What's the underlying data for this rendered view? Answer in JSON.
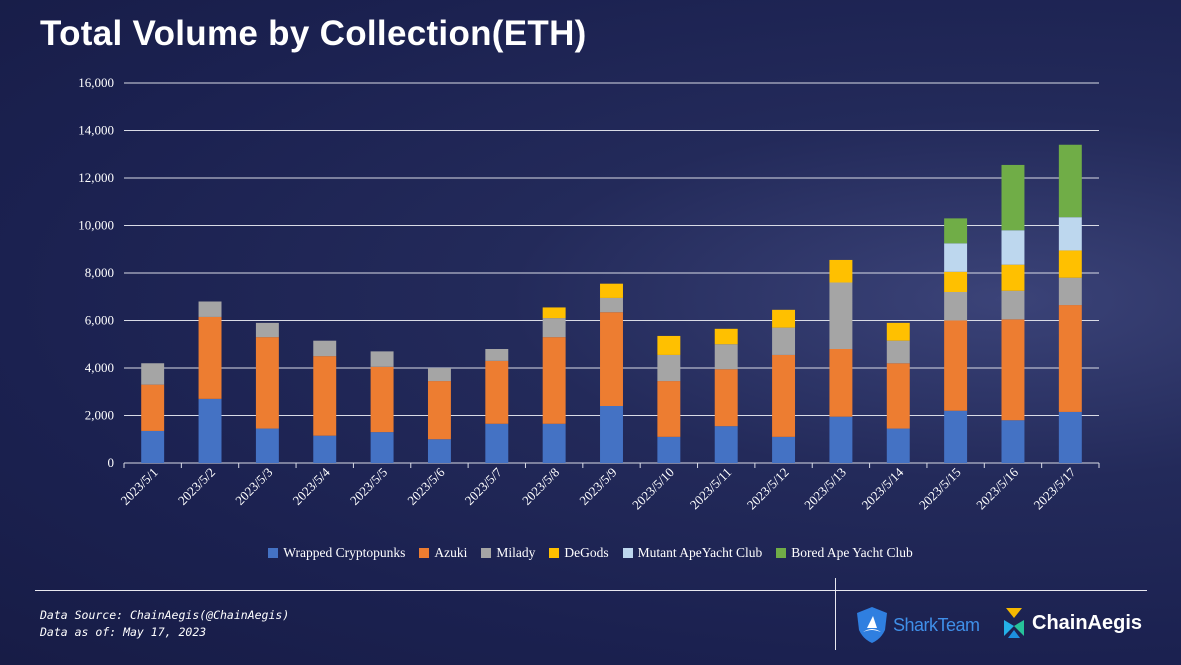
{
  "title": "Total Volume by Collection(ETH)",
  "footer": {
    "source": "Data Source: ChainAegis(@ChainAegis)",
    "asof": "Data as of: May 17, 2023"
  },
  "logos": {
    "sharkteam": "SharkTeam",
    "chainaegis": "ChainAegis"
  },
  "chart_data": {
    "type": "bar",
    "stacked": true,
    "categories": [
      "2023/5/1",
      "2023/5/2",
      "2023/5/3",
      "2023/5/4",
      "2023/5/5",
      "2023/5/6",
      "2023/5/7",
      "2023/5/8",
      "2023/5/9",
      "2023/5/10",
      "2023/5/11",
      "2023/5/12",
      "2023/5/13",
      "2023/5/14",
      "2023/5/15",
      "2023/5/16",
      "2023/5/17"
    ],
    "series": [
      {
        "name": "Wrapped Cryptopunks",
        "color": "#4472c4",
        "values": [
          1350,
          2700,
          1450,
          1150,
          1300,
          1000,
          1650,
          1650,
          2400,
          1100,
          1550,
          1100,
          1950,
          1450,
          2200,
          1800,
          2150
        ]
      },
      {
        "name": "Azuki",
        "color": "#ed7d31",
        "values": [
          1950,
          3450,
          3850,
          3350,
          2750,
          2450,
          2650,
          3650,
          3950,
          2350,
          2400,
          3450,
          2850,
          2750,
          3800,
          4250,
          4500
        ]
      },
      {
        "name": "Milady",
        "color": "#a5a5a5",
        "values": [
          900,
          650,
          600,
          650,
          650,
          550,
          500,
          800,
          600,
          1100,
          1050,
          1150,
          2800,
          950,
          1200,
          1200,
          1150
        ]
      },
      {
        "name": "DeGods",
        "color": "#ffc000",
        "values": [
          0,
          0,
          0,
          0,
          0,
          0,
          0,
          450,
          600,
          800,
          650,
          750,
          950,
          750,
          850,
          1100,
          1150
        ]
      },
      {
        "name": "Mutant ApeYacht Club",
        "color": "#bdd7ee",
        "values": [
          0,
          0,
          0,
          0,
          0,
          0,
          0,
          0,
          0,
          0,
          0,
          0,
          0,
          0,
          1200,
          1450,
          1400
        ]
      },
      {
        "name": "Bored Ape Yacht Club",
        "color": "#70ad47",
        "values": [
          0,
          0,
          0,
          0,
          0,
          0,
          0,
          0,
          0,
          0,
          0,
          0,
          0,
          0,
          1050,
          2750,
          3050
        ]
      }
    ],
    "ylim": [
      0,
      16000
    ],
    "yticks": [
      "0",
      "2,000",
      "4,000",
      "6,000",
      "8,000",
      "10,000",
      "12,000",
      "14,000",
      "16,000"
    ],
    "grid": true,
    "legend_position": "bottom",
    "xlabel": "",
    "ylabel": ""
  }
}
